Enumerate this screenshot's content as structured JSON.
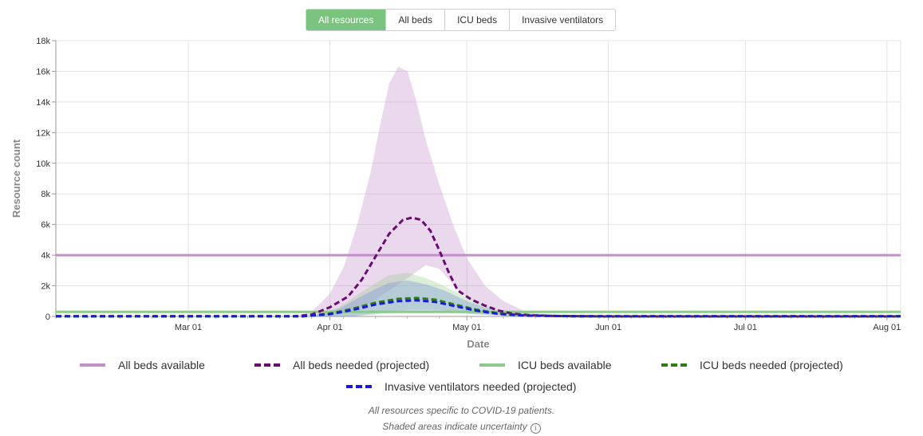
{
  "tabs": [
    {
      "label": "All resources",
      "active": true
    },
    {
      "label": "All beds",
      "active": false
    },
    {
      "label": "ICU beds",
      "active": false
    },
    {
      "label": "Invasive ventilators",
      "active": false
    }
  ],
  "legend": [
    {
      "label": "All beds available",
      "color": "#c38fcb",
      "style": "solid"
    },
    {
      "label": "All beds needed (projected)",
      "color": "#6a0a73",
      "style": "dashed"
    },
    {
      "label": "ICU beds available",
      "color": "#8ec98c",
      "style": "solid"
    },
    {
      "label": "ICU beds needed (projected)",
      "color": "#2e7d12",
      "style": "dashed"
    },
    {
      "label": "Invasive ventilators needed (projected)",
      "color": "#1a1adb",
      "style": "dashed"
    }
  ],
  "notes": {
    "line1": "All resources specific to COVID-19 patients.",
    "line2": "Shaded areas indicate uncertainty",
    "info_icon": "info-icon"
  },
  "chart_data": {
    "type": "line",
    "xlabel": "Date",
    "ylabel": "Resource count",
    "x_domain": [
      "2020-02-01",
      "2020-08-04"
    ],
    "ylim": [
      0,
      18000
    ],
    "x_ticks": [
      {
        "date": "2020-03-01",
        "label": "Mar 01"
      },
      {
        "date": "2020-04-01",
        "label": "Apr 01"
      },
      {
        "date": "2020-05-01",
        "label": "May 01"
      },
      {
        "date": "2020-06-01",
        "label": "Jun 01"
      },
      {
        "date": "2020-07-01",
        "label": "Jul 01"
      },
      {
        "date": "2020-08-01",
        "label": "Aug 01"
      }
    ],
    "y_ticks": [
      {
        "value": 0,
        "label": "0"
      },
      {
        "value": 2000,
        "label": "2k"
      },
      {
        "value": 4000,
        "label": "4k"
      },
      {
        "value": 6000,
        "label": "6k"
      },
      {
        "value": 8000,
        "label": "8k"
      },
      {
        "value": 10000,
        "label": "10k"
      },
      {
        "value": 12000,
        "label": "12k"
      },
      {
        "value": 14000,
        "label": "14k"
      },
      {
        "value": 16000,
        "label": "16k"
      },
      {
        "value": 18000,
        "label": "18k"
      }
    ],
    "grid": true,
    "series": [
      {
        "name": "All beds available",
        "style": "solid",
        "color": "#c38fcb",
        "points": [
          [
            "2020-02-01",
            4000
          ],
          [
            "2020-08-04",
            4000
          ]
        ]
      },
      {
        "name": "ICU beds available",
        "style": "solid",
        "color": "#8ec98c",
        "points": [
          [
            "2020-02-01",
            300
          ],
          [
            "2020-08-04",
            300
          ]
        ]
      },
      {
        "name": "All beds needed (projected)",
        "style": "dashed",
        "color": "#6a0a73",
        "band_color": "#c38fcb",
        "points": [
          [
            "2020-02-01",
            0
          ],
          [
            "2020-03-24",
            0
          ],
          [
            "2020-03-28",
            120
          ],
          [
            "2020-04-01",
            600
          ],
          [
            "2020-04-05",
            1300
          ],
          [
            "2020-04-08",
            2400
          ],
          [
            "2020-04-11",
            3900
          ],
          [
            "2020-04-14",
            5400
          ],
          [
            "2020-04-17",
            6300
          ],
          [
            "2020-04-19",
            6450
          ],
          [
            "2020-04-21",
            6300
          ],
          [
            "2020-04-23",
            5600
          ],
          [
            "2020-04-25",
            4300
          ],
          [
            "2020-04-27",
            2900
          ],
          [
            "2020-04-29",
            1700
          ],
          [
            "2020-05-02",
            1100
          ],
          [
            "2020-05-05",
            700
          ],
          [
            "2020-05-08",
            380
          ],
          [
            "2020-05-11",
            180
          ],
          [
            "2020-05-15",
            80
          ],
          [
            "2020-05-20",
            30
          ],
          [
            "2020-06-01",
            0
          ],
          [
            "2020-08-04",
            0
          ]
        ],
        "lower": [
          [
            "2020-02-01",
            0
          ],
          [
            "2020-03-28",
            0
          ],
          [
            "2020-04-05",
            200
          ],
          [
            "2020-04-10",
            900
          ],
          [
            "2020-04-15",
            1900
          ],
          [
            "2020-04-19",
            2700
          ],
          [
            "2020-04-22",
            3350
          ],
          [
            "2020-04-25",
            3100
          ],
          [
            "2020-04-28",
            2100
          ],
          [
            "2020-05-01",
            1200
          ],
          [
            "2020-05-06",
            500
          ],
          [
            "2020-05-11",
            150
          ],
          [
            "2020-05-17",
            30
          ],
          [
            "2020-06-01",
            0
          ],
          [
            "2020-08-04",
            0
          ]
        ],
        "upper": [
          [
            "2020-02-01",
            0
          ],
          [
            "2020-03-24",
            0
          ],
          [
            "2020-03-28",
            300
          ],
          [
            "2020-04-01",
            1500
          ],
          [
            "2020-04-04",
            3200
          ],
          [
            "2020-04-07",
            6000
          ],
          [
            "2020-04-10",
            9500
          ],
          [
            "2020-04-12",
            12500
          ],
          [
            "2020-04-14",
            15200
          ],
          [
            "2020-04-16",
            16300
          ],
          [
            "2020-04-18",
            16000
          ],
          [
            "2020-04-20",
            14000
          ],
          [
            "2020-04-22",
            11500
          ],
          [
            "2020-04-25",
            8600
          ],
          [
            "2020-04-28",
            6000
          ],
          [
            "2020-05-01",
            3800
          ],
          [
            "2020-05-05",
            2000
          ],
          [
            "2020-05-09",
            1000
          ],
          [
            "2020-05-14",
            300
          ],
          [
            "2020-05-20",
            80
          ],
          [
            "2020-06-01",
            0
          ],
          [
            "2020-08-04",
            0
          ]
        ]
      },
      {
        "name": "ICU beds needed (projected)",
        "style": "dashed",
        "color": "#2e7d12",
        "band_color": "#9ccf8e",
        "points": [
          [
            "2020-02-01",
            0
          ],
          [
            "2020-03-26",
            0
          ],
          [
            "2020-04-01",
            180
          ],
          [
            "2020-04-06",
            500
          ],
          [
            "2020-04-11",
            900
          ],
          [
            "2020-04-16",
            1150
          ],
          [
            "2020-04-20",
            1200
          ],
          [
            "2020-04-24",
            1100
          ],
          [
            "2020-04-28",
            800
          ],
          [
            "2020-05-03",
            450
          ],
          [
            "2020-05-08",
            200
          ],
          [
            "2020-05-14",
            60
          ],
          [
            "2020-05-25",
            0
          ],
          [
            "2020-08-04",
            0
          ]
        ],
        "lower": [
          [
            "2020-02-01",
            0
          ],
          [
            "2020-04-05",
            0
          ],
          [
            "2020-04-12",
            250
          ],
          [
            "2020-04-19",
            450
          ],
          [
            "2020-04-25",
            420
          ],
          [
            "2020-05-02",
            200
          ],
          [
            "2020-05-10",
            40
          ],
          [
            "2020-05-20",
            0
          ],
          [
            "2020-08-04",
            0
          ]
        ],
        "upper": [
          [
            "2020-02-01",
            0
          ],
          [
            "2020-03-28",
            0
          ],
          [
            "2020-04-03",
            600
          ],
          [
            "2020-04-09",
            1800
          ],
          [
            "2020-04-14",
            2700
          ],
          [
            "2020-04-18",
            2850
          ],
          [
            "2020-04-22",
            2500
          ],
          [
            "2020-04-26",
            2000
          ],
          [
            "2020-05-01",
            1200
          ],
          [
            "2020-05-07",
            500
          ],
          [
            "2020-05-14",
            150
          ],
          [
            "2020-05-25",
            0
          ],
          [
            "2020-08-04",
            0
          ]
        ]
      },
      {
        "name": "Invasive ventilators needed (projected)",
        "style": "dashed",
        "color": "#1a1adb",
        "band_color": "#6f8fd6",
        "points": [
          [
            "2020-02-01",
            20
          ],
          [
            "2020-03-26",
            20
          ],
          [
            "2020-04-01",
            150
          ],
          [
            "2020-04-06",
            420
          ],
          [
            "2020-04-11",
            780
          ],
          [
            "2020-04-16",
            1000
          ],
          [
            "2020-04-20",
            1050
          ],
          [
            "2020-04-24",
            950
          ],
          [
            "2020-04-28",
            700
          ],
          [
            "2020-05-03",
            380
          ],
          [
            "2020-05-08",
            160
          ],
          [
            "2020-05-14",
            50
          ],
          [
            "2020-05-25",
            20
          ],
          [
            "2020-08-04",
            20
          ]
        ],
        "lower": [
          [
            "2020-02-01",
            0
          ],
          [
            "2020-04-06",
            0
          ],
          [
            "2020-04-13",
            200
          ],
          [
            "2020-04-19",
            350
          ],
          [
            "2020-04-25",
            320
          ],
          [
            "2020-05-02",
            150
          ],
          [
            "2020-05-10",
            30
          ],
          [
            "2020-05-20",
            0
          ],
          [
            "2020-08-04",
            0
          ]
        ],
        "upper": [
          [
            "2020-02-01",
            0
          ],
          [
            "2020-03-28",
            0
          ],
          [
            "2020-04-03",
            500
          ],
          [
            "2020-04-09",
            1500
          ],
          [
            "2020-04-14",
            2200
          ],
          [
            "2020-04-18",
            2350
          ],
          [
            "2020-04-22",
            2100
          ],
          [
            "2020-04-26",
            1700
          ],
          [
            "2020-05-01",
            1000
          ],
          [
            "2020-05-07",
            400
          ],
          [
            "2020-05-14",
            120
          ],
          [
            "2020-05-25",
            0
          ],
          [
            "2020-08-04",
            0
          ]
        ]
      }
    ]
  }
}
